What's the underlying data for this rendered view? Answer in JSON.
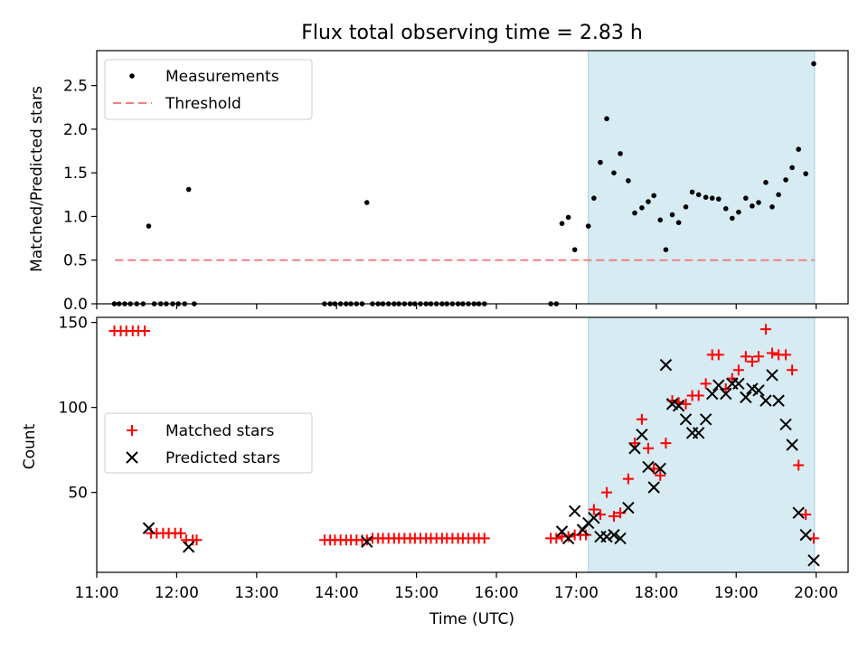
{
  "chart_data": {
    "title": "Flux total observing time = 2.83 h",
    "xlabel": "Time (UTC)",
    "xlim": [
      11.0,
      20.4
    ],
    "xticks": [
      {
        "v": 11,
        "label": "11:00"
      },
      {
        "v": 12,
        "label": "12:00"
      },
      {
        "v": 13,
        "label": "13:00"
      },
      {
        "v": 14,
        "label": "14:00"
      },
      {
        "v": 15,
        "label": "15:00"
      },
      {
        "v": 16,
        "label": "16:00"
      },
      {
        "v": 17,
        "label": "17:00"
      },
      {
        "v": 18,
        "label": "18:00"
      },
      {
        "v": 19,
        "label": "19:00"
      },
      {
        "v": 20,
        "label": "20:00"
      }
    ],
    "span": {
      "x0": 17.15,
      "x1": 19.98,
      "color": "#add8e6"
    },
    "top": {
      "type": "scatter",
      "ylabel": "Matched/Predicted stars",
      "ylim": [
        0,
        2.9
      ],
      "yticks": [
        "0.0",
        "0.5",
        "1.0",
        "1.5",
        "2.0",
        "2.5"
      ],
      "legend": {
        "position": "top-left",
        "measurements": "Measurements",
        "threshold": "Threshold"
      },
      "threshold": {
        "y": 0.5,
        "x0": 11.23,
        "x1": 19.98,
        "color": "#f08080"
      },
      "measurements": [
        [
          11.22,
          0
        ],
        [
          11.28,
          0
        ],
        [
          11.35,
          0
        ],
        [
          11.42,
          0
        ],
        [
          11.5,
          0
        ],
        [
          11.58,
          0
        ],
        [
          11.65,
          0.89
        ],
        [
          11.72,
          0
        ],
        [
          11.8,
          0
        ],
        [
          11.87,
          0
        ],
        [
          11.95,
          0
        ],
        [
          12.02,
          0
        ],
        [
          12.1,
          0
        ],
        [
          12.15,
          1.31
        ],
        [
          12.22,
          0
        ],
        [
          13.85,
          0
        ],
        [
          13.92,
          0
        ],
        [
          13.98,
          0
        ],
        [
          14.05,
          0
        ],
        [
          14.12,
          0
        ],
        [
          14.18,
          0
        ],
        [
          14.25,
          0
        ],
        [
          14.32,
          0
        ],
        [
          14.38,
          1.16
        ],
        [
          14.45,
          0
        ],
        [
          14.52,
          0
        ],
        [
          14.58,
          0
        ],
        [
          14.65,
          0
        ],
        [
          14.72,
          0
        ],
        [
          14.78,
          0
        ],
        [
          14.85,
          0
        ],
        [
          14.92,
          0
        ],
        [
          14.98,
          0
        ],
        [
          15.05,
          0
        ],
        [
          15.12,
          0
        ],
        [
          15.18,
          0
        ],
        [
          15.25,
          0
        ],
        [
          15.32,
          0
        ],
        [
          15.38,
          0
        ],
        [
          15.45,
          0
        ],
        [
          15.52,
          0
        ],
        [
          15.58,
          0
        ],
        [
          15.65,
          0
        ],
        [
          15.72,
          0
        ],
        [
          15.78,
          0
        ],
        [
          15.85,
          0
        ],
        [
          16.68,
          0
        ],
        [
          16.75,
          0
        ],
        [
          16.82,
          0.92
        ],
        [
          16.9,
          0.99
        ],
        [
          16.98,
          0.62
        ],
        [
          17.15,
          0.89
        ],
        [
          17.22,
          1.21
        ],
        [
          17.3,
          1.62
        ],
        [
          17.38,
          2.12
        ],
        [
          17.47,
          1.5
        ],
        [
          17.55,
          1.72
        ],
        [
          17.65,
          1.41
        ],
        [
          17.73,
          1.04
        ],
        [
          17.82,
          1.1
        ],
        [
          17.9,
          1.17
        ],
        [
          17.97,
          1.24
        ],
        [
          18.05,
          0.96
        ],
        [
          18.12,
          0.62
        ],
        [
          18.2,
          1.02
        ],
        [
          18.28,
          0.93
        ],
        [
          18.37,
          1.11
        ],
        [
          18.45,
          1.28
        ],
        [
          18.53,
          1.25
        ],
        [
          18.62,
          1.22
        ],
        [
          18.7,
          1.21
        ],
        [
          18.78,
          1.2
        ],
        [
          18.87,
          1.09
        ],
        [
          18.95,
          0.98
        ],
        [
          19.03,
          1.05
        ],
        [
          19.12,
          1.21
        ],
        [
          19.2,
          1.12
        ],
        [
          19.28,
          1.16
        ],
        [
          19.37,
          1.39
        ],
        [
          19.45,
          1.11
        ],
        [
          19.53,
          1.25
        ],
        [
          19.62,
          1.42
        ],
        [
          19.7,
          1.56
        ],
        [
          19.78,
          1.77
        ],
        [
          19.87,
          1.49
        ],
        [
          19.97,
          2.75
        ]
      ]
    },
    "bottom": {
      "type": "scatter",
      "ylabel": "Count",
      "ylim": [
        3,
        153
      ],
      "yticks": [
        {
          "v": 50,
          "label": "50"
        },
        {
          "v": 100,
          "label": "100"
        },
        {
          "v": 150,
          "label": "150"
        }
      ],
      "legend": {
        "position": "center-left",
        "matched": "Matched stars",
        "predicted": "Predicted stars"
      },
      "matched": [
        [
          11.22,
          145
        ],
        [
          11.3,
          145
        ],
        [
          11.37,
          145
        ],
        [
          11.45,
          145
        ],
        [
          11.52,
          145
        ],
        [
          11.6,
          145
        ],
        [
          11.68,
          26
        ],
        [
          11.75,
          26
        ],
        [
          11.83,
          26
        ],
        [
          11.9,
          26
        ],
        [
          11.98,
          26
        ],
        [
          12.05,
          26
        ],
        [
          12.12,
          22
        ],
        [
          12.2,
          22
        ],
        [
          12.25,
          22
        ],
        [
          13.85,
          22
        ],
        [
          13.92,
          22
        ],
        [
          13.98,
          22
        ],
        [
          14.05,
          22
        ],
        [
          14.12,
          22
        ],
        [
          14.18,
          22
        ],
        [
          14.25,
          22
        ],
        [
          14.32,
          22
        ],
        [
          14.38,
          22
        ],
        [
          14.45,
          23
        ],
        [
          14.52,
          23
        ],
        [
          14.58,
          23
        ],
        [
          14.65,
          23
        ],
        [
          14.72,
          23
        ],
        [
          14.78,
          23
        ],
        [
          14.85,
          23
        ],
        [
          14.92,
          23
        ],
        [
          14.98,
          23
        ],
        [
          15.05,
          23
        ],
        [
          15.12,
          23
        ],
        [
          15.18,
          23
        ],
        [
          15.25,
          23
        ],
        [
          15.32,
          23
        ],
        [
          15.38,
          23
        ],
        [
          15.45,
          23
        ],
        [
          15.52,
          23
        ],
        [
          15.58,
          23
        ],
        [
          15.65,
          23
        ],
        [
          15.72,
          23
        ],
        [
          15.78,
          23
        ],
        [
          15.85,
          23
        ],
        [
          16.68,
          23
        ],
        [
          16.75,
          23
        ],
        [
          16.82,
          24
        ],
        [
          16.9,
          24
        ],
        [
          16.98,
          25
        ],
        [
          17.05,
          25
        ],
        [
          17.12,
          25
        ],
        [
          17.22,
          40
        ],
        [
          17.3,
          37
        ],
        [
          17.38,
          50
        ],
        [
          17.47,
          36
        ],
        [
          17.55,
          38
        ],
        [
          17.65,
          58
        ],
        [
          17.73,
          79
        ],
        [
          17.82,
          93
        ],
        [
          17.9,
          76
        ],
        [
          17.97,
          64
        ],
        [
          18.05,
          60
        ],
        [
          18.12,
          79
        ],
        [
          18.2,
          104
        ],
        [
          18.28,
          103
        ],
        [
          18.37,
          102
        ],
        [
          18.45,
          107
        ],
        [
          18.53,
          107
        ],
        [
          18.62,
          114
        ],
        [
          18.7,
          131
        ],
        [
          18.78,
          131
        ],
        [
          18.87,
          111
        ],
        [
          18.95,
          117
        ],
        [
          19.03,
          122
        ],
        [
          19.12,
          130
        ],
        [
          19.2,
          127
        ],
        [
          19.28,
          130
        ],
        [
          19.37,
          146
        ],
        [
          19.45,
          132
        ],
        [
          19.53,
          131
        ],
        [
          19.62,
          131
        ],
        [
          19.7,
          122
        ],
        [
          19.78,
          66
        ],
        [
          19.87,
          37
        ],
        [
          19.97,
          23
        ]
      ],
      "predicted": [
        [
          11.65,
          29
        ],
        [
          12.15,
          18
        ],
        [
          14.38,
          21
        ],
        [
          16.82,
          27
        ],
        [
          16.9,
          23
        ],
        [
          16.98,
          39
        ],
        [
          17.08,
          28
        ],
        [
          17.15,
          32
        ],
        [
          17.22,
          35
        ],
        [
          17.3,
          24
        ],
        [
          17.38,
          24
        ],
        [
          17.47,
          25
        ],
        [
          17.55,
          23
        ],
        [
          17.65,
          41
        ],
        [
          17.73,
          76
        ],
        [
          17.82,
          84
        ],
        [
          17.9,
          65
        ],
        [
          17.97,
          53
        ],
        [
          18.05,
          64
        ],
        [
          18.12,
          125
        ],
        [
          18.2,
          102
        ],
        [
          18.28,
          101
        ],
        [
          18.37,
          93
        ],
        [
          18.45,
          85
        ],
        [
          18.53,
          85
        ],
        [
          18.62,
          93
        ],
        [
          18.7,
          108
        ],
        [
          18.78,
          113
        ],
        [
          18.87,
          108
        ],
        [
          18.95,
          114
        ],
        [
          19.03,
          114
        ],
        [
          19.12,
          106
        ],
        [
          19.2,
          111
        ],
        [
          19.28,
          110
        ],
        [
          19.37,
          104
        ],
        [
          19.45,
          119
        ],
        [
          19.53,
          104
        ],
        [
          19.62,
          90
        ],
        [
          19.7,
          78
        ],
        [
          19.78,
          38
        ],
        [
          19.87,
          25
        ],
        [
          19.97,
          10
        ]
      ]
    }
  }
}
